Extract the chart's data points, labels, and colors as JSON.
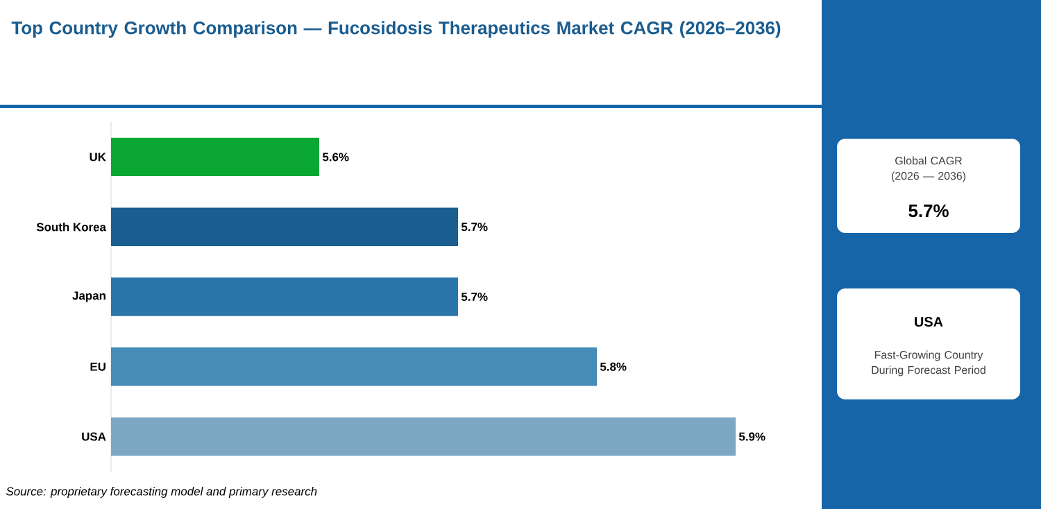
{
  "chart_data": {
    "type": "bar",
    "orientation": "horizontal",
    "title": "Top Country Growth Comparison — Fucosidosis Therapeutics Market CAGR (2026–2036)",
    "categories": [
      "UK",
      "South Korea",
      "Japan",
      "EU",
      "USA"
    ],
    "values": [
      5.6,
      5.7,
      5.7,
      5.8,
      5.9
    ],
    "value_labels": [
      "5.6%",
      "5.7%",
      "5.7%",
      "5.8%",
      "5.9%"
    ],
    "colors": [
      "#0aa832",
      "#1a5f8f",
      "#2a76aa",
      "#458db8",
      "#7da8c3"
    ],
    "xlim": [
      5.45,
      5.96
    ],
    "tick_labels": "y",
    "annotations": [
      "Source: proprietary forecasting model and primary research",
      "Global CAGR (2026 — 2036)",
      "5.7%",
      "USA",
      "Fast-Growing Country During Forecast Period"
    ]
  }
}
